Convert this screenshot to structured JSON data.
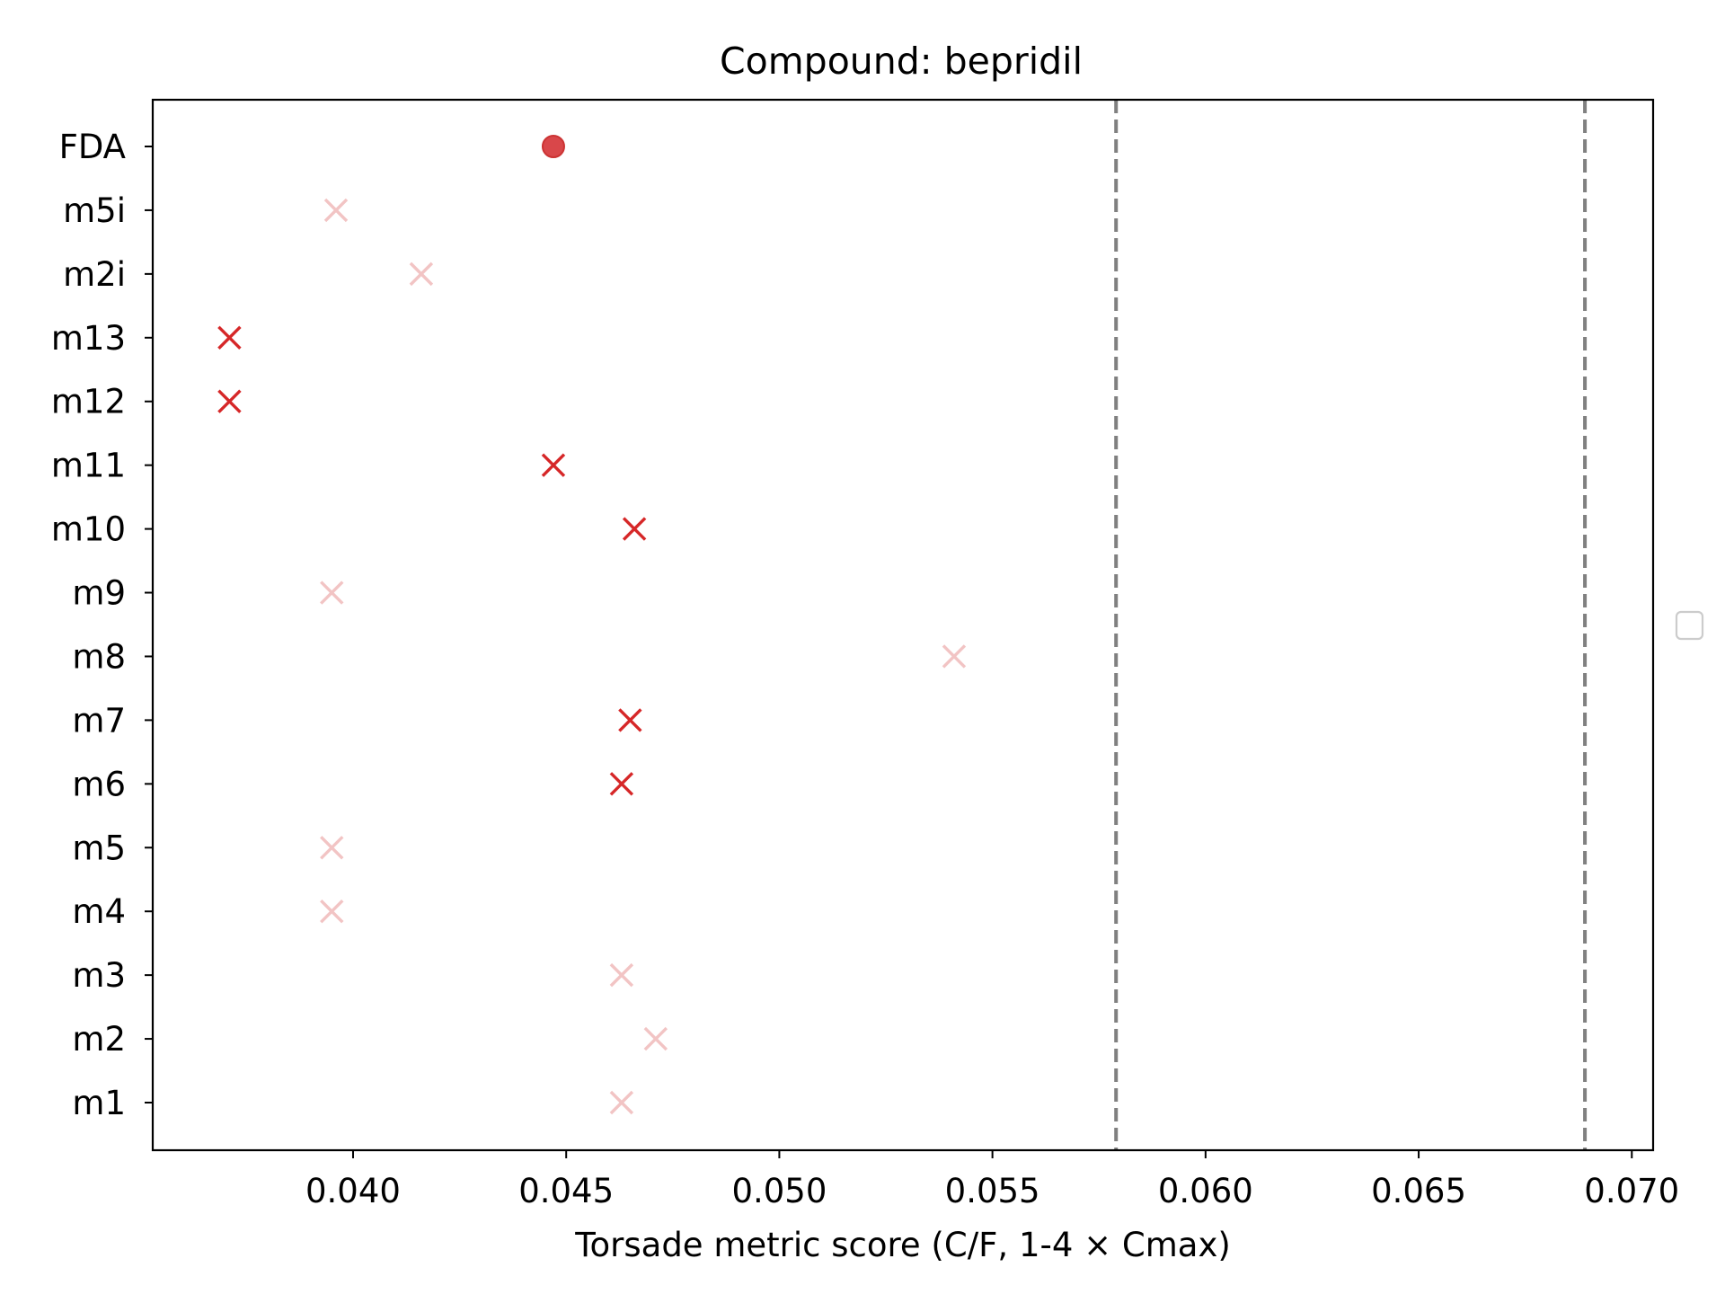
{
  "chart_data": {
    "type": "scatter",
    "title": "Compound: bepridil",
    "xlabel": "Torsade metric score (C/F, 1-4 × Cmax)",
    "ylabel": "",
    "xlim": [
      0.0353,
      0.0705
    ],
    "x_ticks": [
      0.04,
      0.045,
      0.05,
      0.055,
      0.06,
      0.065,
      0.07
    ],
    "x_tick_labels": [
      "0.040",
      "0.045",
      "0.050",
      "0.055",
      "0.060",
      "0.065",
      "0.070"
    ],
    "categories": [
      "m1",
      "m2",
      "m3",
      "m4",
      "m5",
      "m6",
      "m7",
      "m8",
      "m9",
      "m10",
      "m11",
      "m12",
      "m13",
      "m2i",
      "m5i",
      "FDA"
    ],
    "points": [
      {
        "label": "m1",
        "x": 0.0463,
        "marker": "x",
        "color": "#f2c4c4"
      },
      {
        "label": "m2",
        "x": 0.0471,
        "marker": "x",
        "color": "#f2c4c4"
      },
      {
        "label": "m3",
        "x": 0.0463,
        "marker": "x",
        "color": "#f2c4c4"
      },
      {
        "label": "m4",
        "x": 0.0395,
        "marker": "x",
        "color": "#f2c4c4"
      },
      {
        "label": "m5",
        "x": 0.0395,
        "marker": "x",
        "color": "#f2c4c4"
      },
      {
        "label": "m6",
        "x": 0.0463,
        "marker": "x",
        "color": "#d62728"
      },
      {
        "label": "m7",
        "x": 0.0465,
        "marker": "x",
        "color": "#d62728"
      },
      {
        "label": "m8",
        "x": 0.0541,
        "marker": "x",
        "color": "#f2c4c4"
      },
      {
        "label": "m9",
        "x": 0.0395,
        "marker": "x",
        "color": "#f2c4c4"
      },
      {
        "label": "m10",
        "x": 0.0466,
        "marker": "x",
        "color": "#d62728"
      },
      {
        "label": "m11",
        "x": 0.0447,
        "marker": "x",
        "color": "#d62728"
      },
      {
        "label": "m12",
        "x": 0.0371,
        "marker": "x",
        "color": "#d62728"
      },
      {
        "label": "m13",
        "x": 0.0371,
        "marker": "x",
        "color": "#d62728"
      },
      {
        "label": "m2i",
        "x": 0.0416,
        "marker": "x",
        "color": "#f2c4c4"
      },
      {
        "label": "m5i",
        "x": 0.0396,
        "marker": "x",
        "color": "#f2c4c4"
      },
      {
        "label": "FDA",
        "x": 0.0447,
        "marker": "circle",
        "color": "#d9474a"
      }
    ],
    "threshold_lines": [
      {
        "x": 0.0579,
        "style": "dashed",
        "color": "#808080"
      },
      {
        "x": 0.0689,
        "style": "dashed",
        "color": "#808080"
      }
    ],
    "grid": false,
    "legend": {
      "placement": "center-right",
      "entries": []
    }
  }
}
